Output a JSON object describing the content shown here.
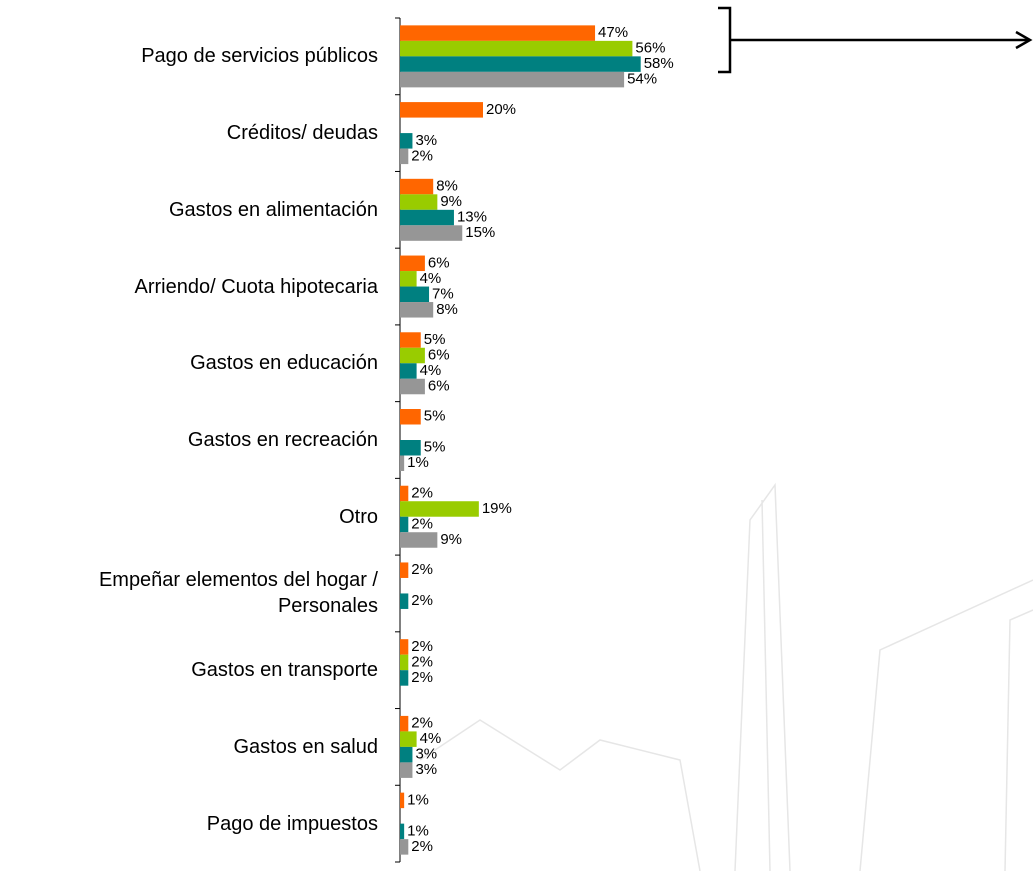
{
  "chart_data": {
    "type": "bar",
    "orientation": "horizontal",
    "categories": [
      "Pago de servicios públicos",
      "Créditos/ deudas",
      "Gastos en alimentación",
      "Arriendo/ Cuota hipotecaria",
      "Gastos en educación",
      "Gastos en recreación",
      "Otro",
      "Empeñar elementos del hogar / Personales",
      "Gastos en transporte",
      "Gastos en salud",
      "Pago de impuestos"
    ],
    "series": [
      {
        "color": "#ff6600",
        "values": [
          47,
          20,
          8,
          6,
          5,
          5,
          2,
          2,
          2,
          2,
          1
        ],
        "value_labels": [
          "47%",
          "20%",
          "8%",
          "6%",
          "5%",
          "5%",
          "2%",
          "2%",
          "2%",
          "2%",
          "1%"
        ]
      },
      {
        "color": "#99cc00",
        "values": [
          56,
          null,
          9,
          4,
          6,
          null,
          19,
          null,
          2,
          4,
          null
        ],
        "value_labels": [
          "56%",
          null,
          "9%",
          "4%",
          "6%",
          null,
          "19%",
          null,
          "2%",
          "4%",
          null
        ]
      },
      {
        "color": "#008080",
        "values": [
          58,
          3,
          13,
          7,
          4,
          5,
          2,
          2,
          2,
          3,
          1
        ],
        "value_labels": [
          "58%",
          "3%",
          "13%",
          "7%",
          "4%",
          "5%",
          "2%",
          "2%",
          "2%",
          "3%",
          "1%"
        ]
      },
      {
        "color": "#969696",
        "values": [
          54,
          2,
          15,
          8,
          6,
          1,
          9,
          null,
          null,
          3,
          2
        ],
        "value_labels": [
          "54%",
          "2%",
          "15%",
          "8%",
          "6%",
          "1%",
          "9%",
          null,
          null,
          "3%",
          "2%"
        ]
      }
    ]
  }
}
